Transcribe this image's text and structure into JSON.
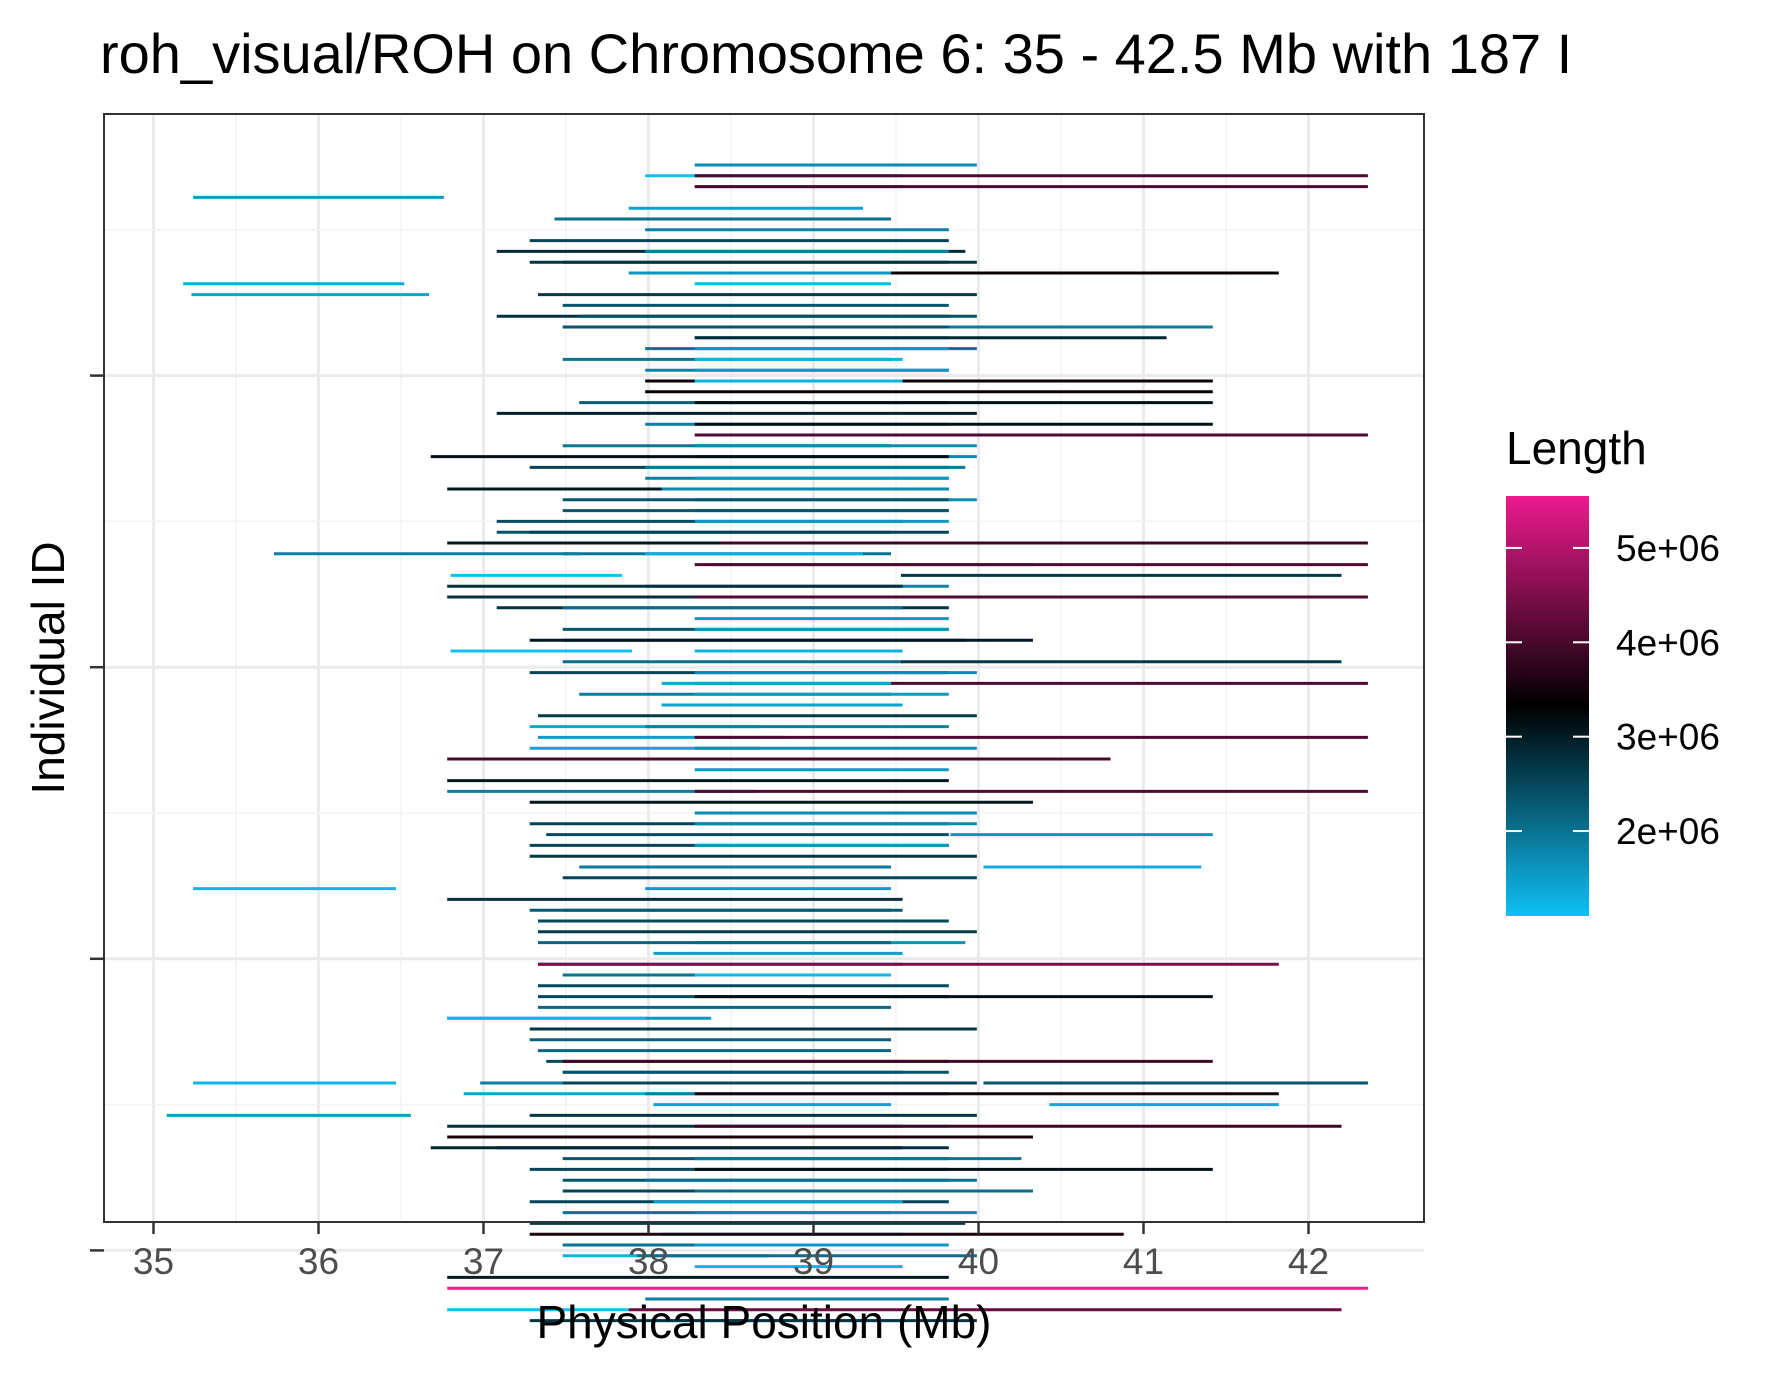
{
  "chart_data": {
    "type": "segment",
    "title": "roh_visual/ROH on Chromosome 6: 35 - 42.5 Mb with 187 I",
    "xlabel": "Physical Position (Mb)",
    "ylabel": "Individual ID",
    "xlim": [
      34.7,
      42.7
    ],
    "x_ticks": [
      "35",
      "36",
      "37",
      "38",
      "39",
      "40",
      "41",
      "42"
    ],
    "grid": true,
    "legend": {
      "title": "Length",
      "position": "right",
      "labels": [
        "5e+06",
        "4e+06",
        "3e+06",
        "2e+06"
      ],
      "label_values": [
        5000000,
        4000000,
        3000000,
        2000000
      ],
      "range": [
        1100000,
        5550000
      ],
      "colors": {
        "low": "#0fc0f5",
        "mid": "#000000",
        "high": "#ed1a8e"
      }
    },
    "segments": [
      [
        38.28,
        39.99,
        0
      ],
      [
        37.98,
        38.98,
        1
      ],
      [
        38.28,
        39.54,
        1
      ],
      [
        38.28,
        42.36,
        1
      ],
      [
        38.28,
        39.54,
        2
      ],
      [
        38.28,
        42.36,
        2
      ],
      [
        35.24,
        36.76,
        3
      ],
      [
        37.88,
        39.3,
        4
      ],
      [
        37.43,
        39.47,
        5
      ],
      [
        37.98,
        39.82,
        6
      ],
      [
        37.28,
        39.82,
        7
      ],
      [
        37.08,
        39.92,
        8
      ],
      [
        37.98,
        39.82,
        8
      ],
      [
        37.48,
        39.82,
        9
      ],
      [
        37.28,
        39.99,
        9
      ],
      [
        38.43,
        41.82,
        10
      ],
      [
        37.88,
        39.47,
        10
      ],
      [
        35.18,
        36.52,
        11
      ],
      [
        38.28,
        39.47,
        11
      ],
      [
        35.23,
        36.67,
        12
      ],
      [
        37.33,
        39.99,
        12
      ],
      [
        37.48,
        39.82,
        13
      ],
      [
        37.08,
        39.82,
        14
      ],
      [
        37.58,
        39.99,
        14
      ],
      [
        39.53,
        41.42,
        15
      ],
      [
        37.48,
        39.82,
        15
      ],
      [
        38.28,
        39.82,
        16
      ],
      [
        38.28,
        41.14,
        16
      ],
      [
        37.98,
        39.99,
        17
      ],
      [
        38.28,
        39.82,
        17
      ],
      [
        37.48,
        39.47,
        18
      ],
      [
        38.28,
        39.54,
        18
      ],
      [
        37.98,
        39.82,
        19
      ],
      [
        38.28,
        39.82,
        19
      ],
      [
        37.98,
        41.42,
        20
      ],
      [
        38.28,
        39.54,
        20
      ],
      [
        37.98,
        41.42,
        21
      ],
      [
        37.58,
        39.82,
        22
      ],
      [
        38.28,
        41.42,
        22
      ],
      [
        37.08,
        39.99,
        23
      ],
      [
        37.98,
        39.82,
        24
      ],
      [
        38.28,
        41.42,
        24
      ],
      [
        38.28,
        42.36,
        25
      ],
      [
        37.48,
        39.47,
        26
      ],
      [
        38.28,
        39.99,
        26
      ],
      [
        38.28,
        39.99,
        27
      ],
      [
        36.68,
        39.82,
        27
      ],
      [
        37.28,
        39.82,
        28
      ],
      [
        37.98,
        39.92,
        28
      ],
      [
        37.98,
        39.82,
        29
      ],
      [
        38.28,
        39.82,
        29
      ],
      [
        36.78,
        39.82,
        30
      ],
      [
        38.08,
        39.82,
        30
      ],
      [
        38.28,
        39.99,
        31
      ],
      [
        37.48,
        39.82,
        31
      ],
      [
        38.28,
        39.82,
        32
      ],
      [
        37.48,
        39.82,
        32
      ],
      [
        37.08,
        39.54,
        33
      ],
      [
        38.28,
        39.82,
        33
      ],
      [
        37.08,
        39.47,
        34
      ],
      [
        37.28,
        39.82,
        34
      ],
      [
        36.78,
        39.82,
        35
      ],
      [
        38.43,
        42.36,
        35
      ],
      [
        37.48,
        39.47,
        36
      ],
      [
        35.73,
        37.58,
        36
      ],
      [
        37.98,
        39.3,
        36
      ],
      [
        38.38,
        40.33,
        37
      ],
      [
        38.28,
        42.36,
        37
      ],
      [
        36.8,
        37.84,
        38
      ],
      [
        39.53,
        42.2,
        38
      ],
      [
        37.98,
        39.82,
        39
      ],
      [
        36.78,
        39.54,
        39
      ],
      [
        36.78,
        39.54,
        40
      ],
      [
        38.28,
        42.36,
        40
      ],
      [
        37.08,
        39.82,
        41
      ],
      [
        37.48,
        39.54,
        41
      ],
      [
        38.28,
        39.82,
        42
      ],
      [
        37.48,
        39.82,
        43
      ],
      [
        38.28,
        39.82,
        43
      ],
      [
        37.48,
        39.92,
        44
      ],
      [
        37.28,
        40.33,
        44
      ],
      [
        36.8,
        37.9,
        45
      ],
      [
        38.28,
        39.54,
        45
      ],
      [
        37.48,
        39.54,
        46
      ],
      [
        39.53,
        42.2,
        46
      ],
      [
        37.28,
        39.82,
        47
      ],
      [
        38.28,
        39.99,
        47
      ],
      [
        38.28,
        42.36,
        48
      ],
      [
        38.08,
        39.47,
        48
      ],
      [
        37.58,
        39.47,
        49
      ],
      [
        38.28,
        39.82,
        49
      ],
      [
        38.08,
        39.54,
        50
      ],
      [
        37.33,
        39.99,
        51
      ],
      [
        37.28,
        38.68,
        52
      ],
      [
        37.98,
        39.82,
        52
      ],
      [
        37.33,
        38.83,
        53
      ],
      [
        38.28,
        42.36,
        53
      ],
      [
        37.28,
        38.68,
        54
      ],
      [
        38.28,
        39.99,
        54
      ],
      [
        36.78,
        40.8,
        55
      ],
      [
        38.28,
        39.82,
        56
      ],
      [
        36.78,
        39.82,
        57
      ],
      [
        36.78,
        38.65,
        58
      ],
      [
        38.28,
        42.36,
        58
      ],
      [
        37.28,
        40.33,
        59
      ],
      [
        38.28,
        39.99,
        60
      ],
      [
        37.28,
        39.82,
        61
      ],
      [
        38.28,
        39.99,
        61
      ],
      [
        37.38,
        39.82,
        62
      ],
      [
        39.83,
        41.42,
        62
      ],
      [
        37.28,
        39.82,
        63
      ],
      [
        38.28,
        39.82,
        63
      ],
      [
        37.28,
        39.99,
        64
      ],
      [
        37.58,
        39.47,
        65
      ],
      [
        40.03,
        41.35,
        65
      ],
      [
        37.48,
        39.99,
        66
      ],
      [
        35.24,
        36.47,
        67
      ],
      [
        37.98,
        39.47,
        67
      ],
      [
        36.78,
        39.54,
        68
      ],
      [
        37.48,
        39.47,
        69
      ],
      [
        37.28,
        39.54,
        69
      ],
      [
        37.33,
        39.82,
        70
      ],
      [
        37.33,
        39.99,
        71
      ],
      [
        38.28,
        39.92,
        72
      ],
      [
        37.33,
        39.47,
        72
      ],
      [
        38.03,
        39.54,
        73
      ],
      [
        37.33,
        39.54,
        74
      ],
      [
        37.33,
        41.82,
        74
      ],
      [
        37.48,
        39.47,
        75
      ],
      [
        38.28,
        39.47,
        75
      ],
      [
        37.33,
        39.82,
        76
      ],
      [
        37.33,
        39.82,
        77
      ],
      [
        38.28,
        41.42,
        77
      ],
      [
        37.33,
        39.47,
        78
      ],
      [
        36.78,
        38.38,
        79
      ],
      [
        36.78,
        37.98,
        79
      ],
      [
        37.98,
        39.82,
        80
      ],
      [
        37.28,
        39.99,
        80
      ],
      [
        37.28,
        39.47,
        81
      ],
      [
        37.33,
        39.47,
        82
      ],
      [
        37.38,
        39.82,
        83
      ],
      [
        37.48,
        41.42,
        83
      ],
      [
        37.48,
        39.54,
        84
      ],
      [
        37.48,
        39.82,
        84
      ],
      [
        35.24,
        36.47,
        85
      ],
      [
        36.98,
        38.83,
        85
      ],
      [
        37.48,
        39.99,
        85
      ],
      [
        40.03,
        42.36,
        85
      ],
      [
        36.88,
        38.28,
        86
      ],
      [
        37.98,
        39.82,
        86
      ],
      [
        38.28,
        41.82,
        86
      ],
      [
        38.03,
        39.47,
        87
      ],
      [
        40.43,
        41.82,
        87
      ],
      [
        35.08,
        36.56,
        88
      ],
      [
        37.28,
        39.99,
        88
      ],
      [
        36.78,
        39.54,
        89
      ],
      [
        38.43,
        39.82,
        89
      ],
      [
        38.28,
        42.2,
        89
      ],
      [
        36.78,
        40.33,
        90
      ],
      [
        37.08,
        39.82,
        91
      ],
      [
        36.68,
        39.54,
        91
      ],
      [
        37.48,
        39.82,
        92
      ],
      [
        38.28,
        40.26,
        92
      ],
      [
        37.28,
        39.82,
        93
      ],
      [
        38.28,
        41.42,
        93
      ],
      [
        37.48,
        39.82,
        94
      ],
      [
        37.98,
        39.99,
        94
      ],
      [
        37.48,
        39.99,
        95
      ],
      [
        38.28,
        40.33,
        95
      ],
      [
        37.28,
        39.82,
        96
      ],
      [
        38.03,
        39.54,
        96
      ],
      [
        37.48,
        39.47,
        97
      ],
      [
        38.28,
        39.99,
        97
      ],
      [
        37.28,
        39.92,
        98
      ],
      [
        38.08,
        39.54,
        99
      ],
      [
        37.28,
        40.88,
        99
      ],
      [
        37.48,
        39.47,
        100
      ],
      [
        38.28,
        39.82,
        100
      ],
      [
        37.48,
        38.73,
        101
      ],
      [
        37.93,
        39.99,
        101
      ],
      [
        38.28,
        39.54,
        102
      ],
      [
        36.78,
        39.82,
        103
      ],
      [
        36.78,
        42.36,
        104
      ],
      [
        37.98,
        39.82,
        105
      ],
      [
        36.78,
        37.88,
        106
      ],
      [
        37.88,
        42.2,
        106
      ],
      [
        38.03,
        39.54,
        107
      ],
      [
        37.28,
        39.99,
        107
      ]
    ]
  }
}
